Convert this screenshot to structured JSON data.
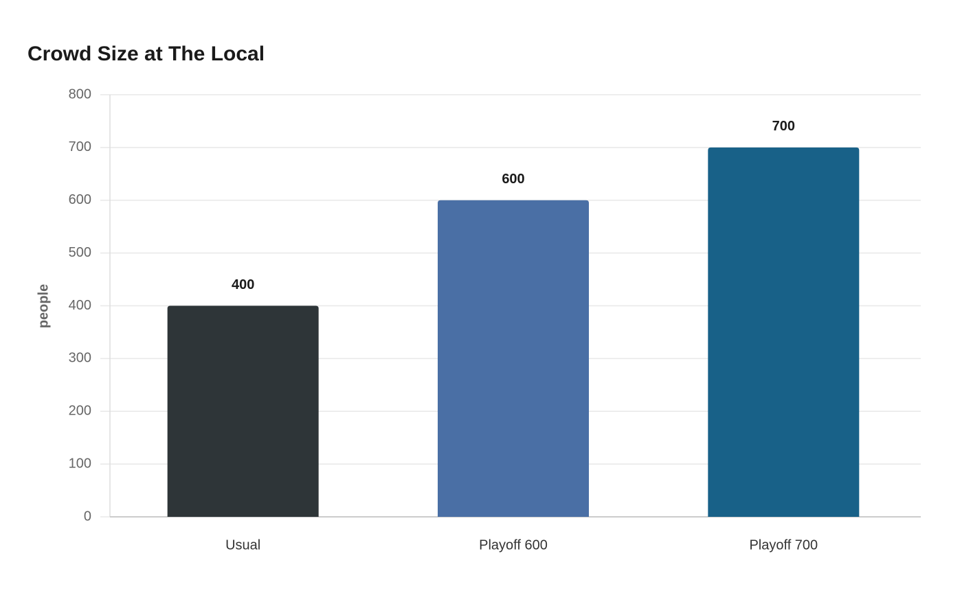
{
  "chart_data": {
    "type": "bar",
    "title": "Crowd Size at The Local",
    "y_label": "people",
    "categories": [
      "Usual",
      "Playoff 600",
      "Playoff 700"
    ],
    "values": [
      400,
      600,
      700
    ],
    "colors": [
      "#2e3538",
      "#4a6fa5",
      "#186188"
    ],
    "ylim": [
      0,
      800
    ],
    "yticks": [
      0,
      100,
      200,
      300,
      400,
      500,
      600,
      700,
      800
    ],
    "grid": true
  }
}
